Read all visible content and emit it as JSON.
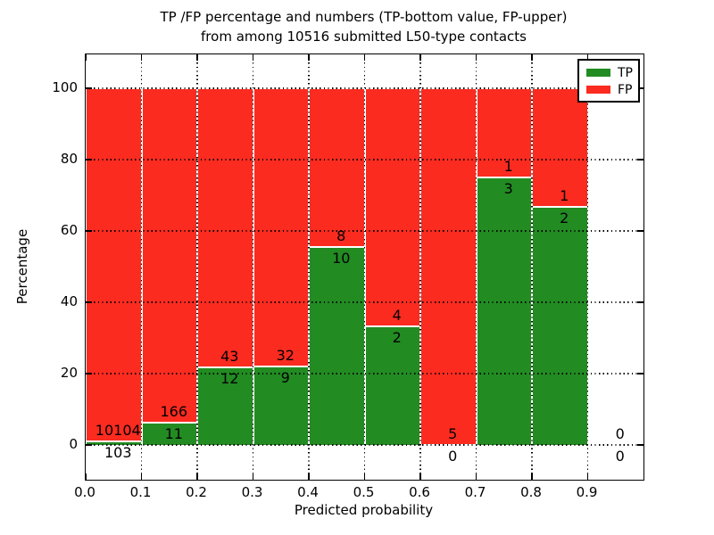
{
  "chart_data": {
    "type": "bar",
    "variant": "stacked-percentage-histogram",
    "title_line1": "TP /FP percentage and numbers (TP-bottom value, FP-upper)",
    "title_line2": "from among 10516 submitted L50-type contacts",
    "xlabel": "Predicted probability",
    "ylabel": "Percentage",
    "xlim": [
      0.0,
      1.0
    ],
    "ylim": [
      -10,
      110
    ],
    "x_ticks": [
      "0.0",
      "0.1",
      "0.2",
      "0.3",
      "0.4",
      "0.5",
      "0.6",
      "0.7",
      "0.8",
      "0.9"
    ],
    "y_ticks": [
      "0",
      "20",
      "40",
      "60",
      "80",
      "100"
    ],
    "grid": {
      "style": "dotted",
      "color": "#000000",
      "drawn_over_bars": true
    },
    "legend": {
      "position": "upper-right",
      "entries": [
        {
          "label": "TP",
          "color": "#228b22"
        },
        {
          "label": "FP",
          "color": "#fb2b20"
        }
      ]
    },
    "bin_width": 0.1,
    "total_contacts": 10516,
    "bins": [
      {
        "x_start": 0.0,
        "x_end": 0.1,
        "tp_count": 103,
        "fp_count": 10104,
        "tp_pct": 1.01,
        "fp_pct": 98.99
      },
      {
        "x_start": 0.1,
        "x_end": 0.2,
        "tp_count": 11,
        "fp_count": 166,
        "tp_pct": 6.21,
        "fp_pct": 93.79
      },
      {
        "x_start": 0.2,
        "x_end": 0.3,
        "tp_count": 12,
        "fp_count": 43,
        "tp_pct": 21.82,
        "fp_pct": 78.18
      },
      {
        "x_start": 0.3,
        "x_end": 0.4,
        "tp_count": 9,
        "fp_count": 32,
        "tp_pct": 21.95,
        "fp_pct": 78.05
      },
      {
        "x_start": 0.4,
        "x_end": 0.5,
        "tp_count": 10,
        "fp_count": 8,
        "tp_pct": 55.56,
        "fp_pct": 44.44
      },
      {
        "x_start": 0.5,
        "x_end": 0.6,
        "tp_count": 2,
        "fp_count": 4,
        "tp_pct": 33.33,
        "fp_pct": 66.67
      },
      {
        "x_start": 0.6,
        "x_end": 0.7,
        "tp_count": 0,
        "fp_count": 5,
        "tp_pct": 0,
        "fp_pct": 100
      },
      {
        "x_start": 0.7,
        "x_end": 0.8,
        "tp_count": 3,
        "fp_count": 1,
        "tp_pct": 75,
        "fp_pct": 25
      },
      {
        "x_start": 0.8,
        "x_end": 0.9,
        "tp_count": 2,
        "fp_count": 1,
        "tp_pct": 66.67,
        "fp_pct": 33.33
      },
      {
        "x_start": 0.9,
        "x_end": 1.0,
        "tp_count": 0,
        "fp_count": 0,
        "tp_pct": 0,
        "fp_pct": 0
      }
    ],
    "colors": {
      "tp": "#228b22",
      "fp": "#fb2b20",
      "background": "#ffffff",
      "text": "#000000"
    }
  }
}
